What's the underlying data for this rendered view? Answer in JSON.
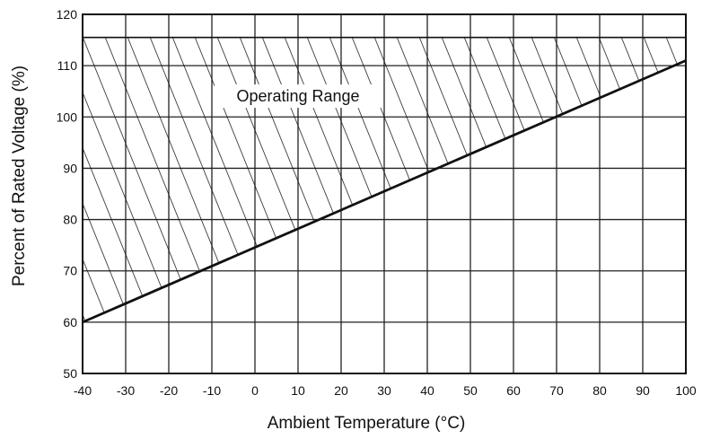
{
  "chart_data": {
    "type": "area",
    "xlabel": "Ambient Temperature (°C)",
    "ylabel": "Percent of Rated Voltage (%)",
    "xlim": [
      -40,
      100
    ],
    "ylim": [
      50,
      120
    ],
    "xticks": [
      -40,
      -30,
      -20,
      -10,
      0,
      10,
      20,
      30,
      40,
      50,
      60,
      70,
      80,
      90,
      100
    ],
    "yticks": [
      50,
      60,
      70,
      80,
      90,
      100,
      110,
      120
    ],
    "grid": true,
    "annotation": "Operating Range",
    "series": [
      {
        "x": [
          -40,
          100
        ],
        "y": [
          60,
          111
        ]
      },
      {
        "x": [
          -40,
          100
        ],
        "y": [
          115.5,
          115.5
        ]
      }
    ]
  }
}
